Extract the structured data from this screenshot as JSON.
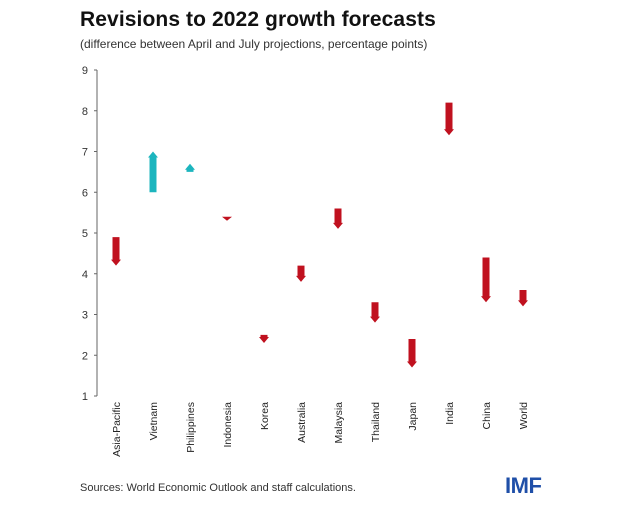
{
  "chart_data": {
    "type": "arrow-range",
    "title": "Revisions to 2022 growth forecasts",
    "subtitle": "(difference between April and July projections, percentage points)",
    "ylim": [
      1,
      9
    ],
    "yticks": [
      1,
      2,
      3,
      4,
      5,
      6,
      7,
      8,
      9
    ],
    "categories": [
      "Asia-Pacific",
      "Vietnam",
      "Philippines",
      "Indonesia",
      "Korea",
      "Australia",
      "Malaysia",
      "Thailand",
      "Japan",
      "India",
      "China",
      "World"
    ],
    "series": [
      {
        "name": "April projection",
        "values": [
          4.9,
          6.0,
          6.5,
          5.4,
          2.5,
          4.2,
          5.6,
          3.3,
          2.4,
          8.2,
          4.4,
          3.6
        ]
      },
      {
        "name": "July projection",
        "values": [
          4.2,
          7.0,
          6.7,
          5.3,
          2.3,
          3.8,
          5.1,
          2.8,
          1.7,
          7.4,
          3.3,
          3.2
        ]
      }
    ],
    "colors": {
      "down": "#c0111f",
      "up": "#1cb5be"
    }
  },
  "footer": {
    "source": "Sources: World Economic Outlook and staff calculations.",
    "logo": "IMF"
  }
}
